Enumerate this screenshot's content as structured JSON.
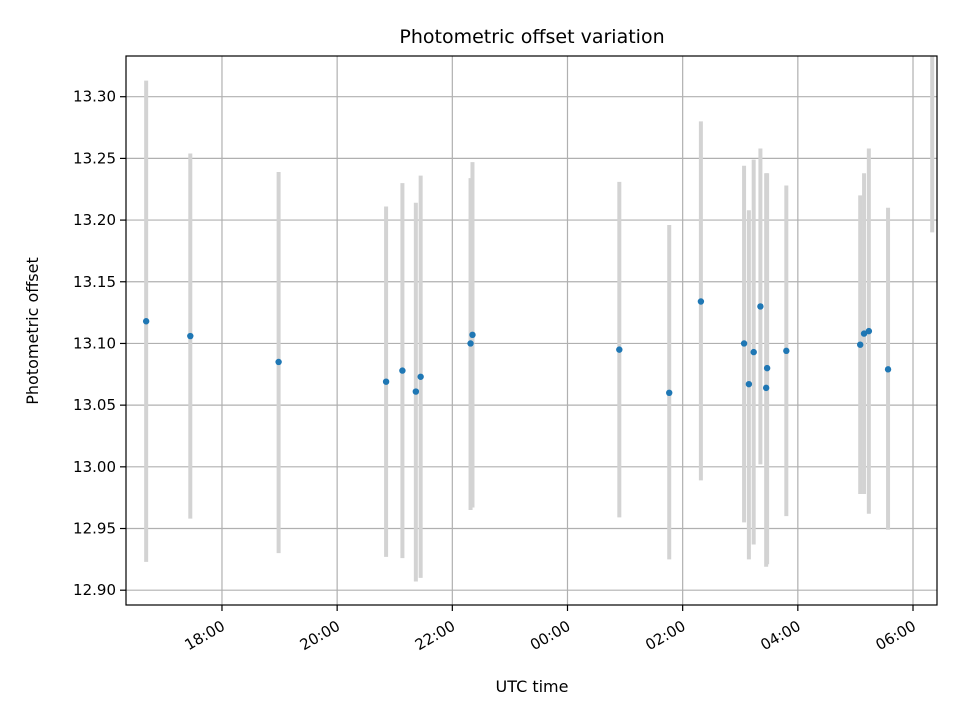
{
  "chart_data": {
    "type": "scatter",
    "title": "Photometric offset variation",
    "xlabel": "UTC time",
    "ylabel": "Photometric offset",
    "x_is_time": true,
    "xlim": [
      "16:20",
      "06:25"
    ],
    "ylim": [
      12.888,
      13.333
    ],
    "xticks": [
      "18:00",
      "20:00",
      "22:00",
      "00:00",
      "02:00",
      "04:00",
      "06:00"
    ],
    "yticks": [
      "12.90",
      "12.95",
      "13.00",
      "13.05",
      "13.10",
      "13.15",
      "13.20",
      "13.25",
      "13.30"
    ],
    "grid": true,
    "point_color": "#1f77b4",
    "errorbar_color": "#d3d3d3",
    "points": [
      {
        "time": "16:41",
        "y": 13.118,
        "ylo": 12.923,
        "yhi": 13.313
      },
      {
        "time": "17:27",
        "y": 13.106,
        "ylo": 12.958,
        "yhi": 13.254
      },
      {
        "time": "18:59",
        "y": 13.085,
        "ylo": 12.93,
        "yhi": 13.239
      },
      {
        "time": "20:51",
        "y": 13.069,
        "ylo": 12.927,
        "yhi": 13.211
      },
      {
        "time": "21:08",
        "y": 13.078,
        "ylo": 12.926,
        "yhi": 13.23
      },
      {
        "time": "21:22",
        "y": 13.061,
        "ylo": 12.907,
        "yhi": 13.214
      },
      {
        "time": "21:27",
        "y": 13.073,
        "ylo": 12.91,
        "yhi": 13.236
      },
      {
        "time": "22:19",
        "y": 13.1,
        "ylo": 12.965,
        "yhi": 13.234
      },
      {
        "time": "22:21",
        "y": 13.107,
        "ylo": 12.967,
        "yhi": 13.247
      },
      {
        "time": "00:54",
        "y": 13.095,
        "ylo": 12.959,
        "yhi": 13.231
      },
      {
        "time": "01:46",
        "y": 13.06,
        "ylo": 12.925,
        "yhi": 13.196
      },
      {
        "time": "02:19",
        "y": 13.134,
        "ylo": 12.989,
        "yhi": 13.28
      },
      {
        "time": "03:04",
        "y": 13.1,
        "ylo": 12.955,
        "yhi": 13.244
      },
      {
        "time": "03:09",
        "y": 13.067,
        "ylo": 12.925,
        "yhi": 13.208
      },
      {
        "time": "03:14",
        "y": 13.093,
        "ylo": 12.937,
        "yhi": 13.249
      },
      {
        "time": "03:21",
        "y": 13.13,
        "ylo": 13.002,
        "yhi": 13.258
      },
      {
        "time": "03:27",
        "y": 13.064,
        "ylo": 12.919,
        "yhi": 13.238
      },
      {
        "time": "03:28",
        "y": 13.08,
        "ylo": 12.921,
        "yhi": 13.238
      },
      {
        "time": "03:48",
        "y": 13.094,
        "ylo": 12.96,
        "yhi": 13.228
      },
      {
        "time": "05:05",
        "y": 13.099,
        "ylo": 12.978,
        "yhi": 13.22
      },
      {
        "time": "05:09",
        "y": 13.108,
        "ylo": 12.978,
        "yhi": 13.238
      },
      {
        "time": "05:14",
        "y": 13.11,
        "ylo": 12.962,
        "yhi": 13.258
      },
      {
        "time": "05:34",
        "y": 13.079,
        "ylo": 12.949,
        "yhi": 13.21
      },
      {
        "time": "06:20",
        "y": null,
        "ylo": 13.19,
        "yhi": 13.333
      }
    ]
  }
}
